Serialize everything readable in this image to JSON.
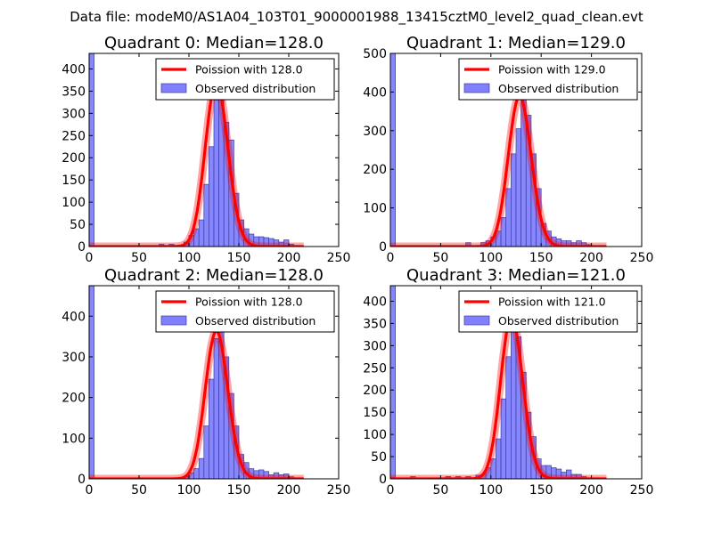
{
  "figure_title": "Data file: modeM0/AS1A04_103T01_9000001988_13415cztM0_level2_quad_clean.evt",
  "colors": {
    "bar_fill": "#8080ff",
    "bar_edge": "#3c3c9c",
    "fit_line": "#ff0000",
    "axes": "#000000"
  },
  "chart_data": [
    {
      "type": "bar",
      "title": "Quadrant 0: Median=128.0",
      "median": 128.0,
      "xlim": [
        0,
        250
      ],
      "ylim": [
        0,
        435
      ],
      "xticks": [
        0,
        50,
        100,
        150,
        200,
        250
      ],
      "yticks": [
        0,
        50,
        100,
        150,
        200,
        250,
        300,
        350,
        400
      ],
      "legend": {
        "location": "top-right",
        "line_label": "Poission with 128.0",
        "bar_label": "Observed distribution"
      },
      "bin_width": 5,
      "bins": [
        [
          0,
          435
        ],
        [
          70,
          5
        ],
        [
          80,
          5
        ],
        [
          95,
          10
        ],
        [
          100,
          25
        ],
        [
          105,
          40
        ],
        [
          110,
          60
        ],
        [
          115,
          140
        ],
        [
          120,
          225
        ],
        [
          125,
          330
        ],
        [
          130,
          360
        ],
        [
          135,
          280
        ],
        [
          140,
          240
        ],
        [
          145,
          120
        ],
        [
          150,
          60
        ],
        [
          155,
          40
        ],
        [
          160,
          28
        ],
        [
          165,
          22
        ],
        [
          170,
          22
        ],
        [
          175,
          20
        ],
        [
          180,
          18
        ],
        [
          185,
          15
        ],
        [
          190,
          10
        ],
        [
          195,
          15
        ],
        [
          200,
          5
        ]
      ]
    },
    {
      "type": "bar",
      "title": "Quadrant 1: Median=129.0",
      "median": 129.0,
      "xlim": [
        0,
        250
      ],
      "ylim": [
        0,
        500
      ],
      "xticks": [
        0,
        50,
        100,
        150,
        200,
        250
      ],
      "yticks": [
        0,
        100,
        200,
        300,
        400,
        500
      ],
      "legend": {
        "location": "top-right",
        "line_label": "Poission with 129.0",
        "bar_label": "Observed distribution"
      },
      "bin_width": 5,
      "bins": [
        [
          0,
          500
        ],
        [
          75,
          10
        ],
        [
          90,
          10
        ],
        [
          95,
          15
        ],
        [
          100,
          25
        ],
        [
          105,
          40
        ],
        [
          110,
          75
        ],
        [
          115,
          150
        ],
        [
          120,
          240
        ],
        [
          125,
          305
        ],
        [
          130,
          400
        ],
        [
          135,
          340
        ],
        [
          140,
          240
        ],
        [
          145,
          150
        ],
        [
          150,
          60
        ],
        [
          155,
          40
        ],
        [
          160,
          25
        ],
        [
          165,
          20
        ],
        [
          170,
          15
        ],
        [
          175,
          15
        ],
        [
          180,
          10
        ],
        [
          185,
          15
        ],
        [
          190,
          10
        ],
        [
          195,
          5
        ]
      ]
    },
    {
      "type": "bar",
      "title": "Quadrant 2: Median=128.0",
      "median": 128.0,
      "xlim": [
        0,
        250
      ],
      "ylim": [
        0,
        475
      ],
      "xticks": [
        0,
        50,
        100,
        150,
        200,
        250
      ],
      "yticks": [
        0,
        100,
        200,
        300,
        400
      ],
      "legend": {
        "location": "top-right",
        "line_label": "Poission with 128.0",
        "bar_label": "Observed distribution"
      },
      "bin_width": 5,
      "bins": [
        [
          0,
          475
        ],
        [
          95,
          5
        ],
        [
          100,
          15
        ],
        [
          105,
          25
        ],
        [
          110,
          50
        ],
        [
          115,
          130
        ],
        [
          120,
          245
        ],
        [
          125,
          345
        ],
        [
          130,
          370
        ],
        [
          135,
          300
        ],
        [
          140,
          210
        ],
        [
          145,
          130
        ],
        [
          150,
          60
        ],
        [
          155,
          40
        ],
        [
          160,
          25
        ],
        [
          165,
          20
        ],
        [
          170,
          22
        ],
        [
          175,
          18
        ],
        [
          180,
          10
        ],
        [
          185,
          15
        ],
        [
          190,
          10
        ],
        [
          195,
          12
        ],
        [
          200,
          5
        ]
      ]
    },
    {
      "type": "bar",
      "title": "Quadrant 3: Median=121.0",
      "median": 121.0,
      "xlim": [
        0,
        250
      ],
      "ylim": [
        0,
        435
      ],
      "xticks": [
        0,
        50,
        100,
        150,
        200,
        250
      ],
      "yticks": [
        0,
        50,
        100,
        150,
        200,
        250,
        300,
        350,
        400
      ],
      "legend": {
        "location": "top-right",
        "line_label": "Poission with 121.0",
        "bar_label": "Observed distribution"
      },
      "bin_width": 5,
      "bins": [
        [
          0,
          435
        ],
        [
          20,
          5
        ],
        [
          55,
          5
        ],
        [
          65,
          5
        ],
        [
          75,
          5
        ],
        [
          85,
          8
        ],
        [
          90,
          10
        ],
        [
          95,
          25
        ],
        [
          100,
          45
        ],
        [
          105,
          90
        ],
        [
          110,
          180
        ],
        [
          115,
          275
        ],
        [
          120,
          340
        ],
        [
          125,
          320
        ],
        [
          130,
          240
        ],
        [
          135,
          150
        ],
        [
          140,
          95
        ],
        [
          145,
          45
        ],
        [
          150,
          30
        ],
        [
          155,
          30
        ],
        [
          160,
          25
        ],
        [
          165,
          22
        ],
        [
          170,
          15
        ],
        [
          175,
          20
        ],
        [
          180,
          10
        ],
        [
          185,
          10
        ],
        [
          190,
          5
        ]
      ]
    }
  ]
}
